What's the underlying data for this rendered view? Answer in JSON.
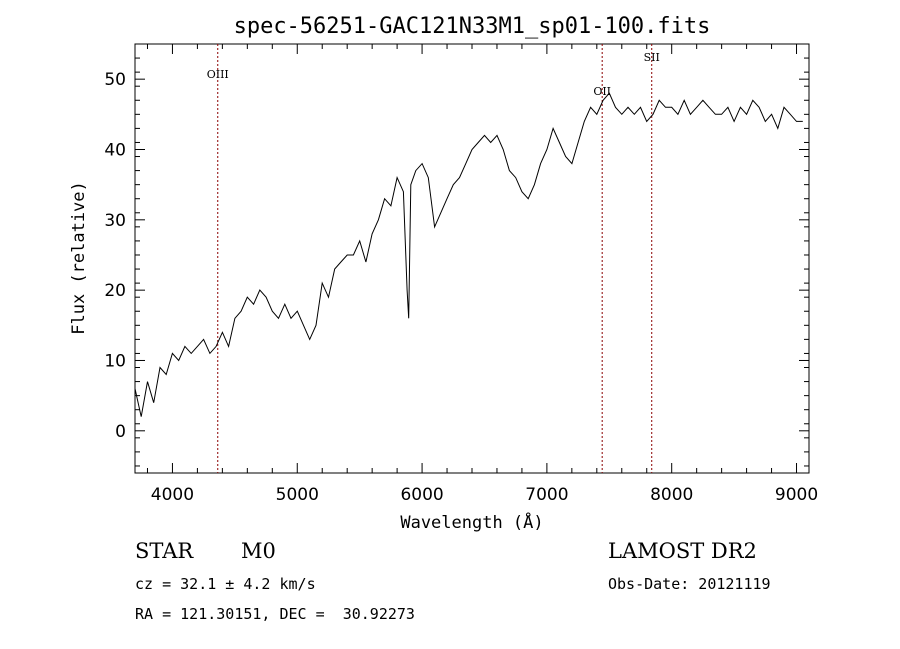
{
  "chart_data": {
    "type": "line",
    "title": "spec-56251-GAC121N33M1_sp01-100.fits",
    "xlabel": "Wavelength (Å)",
    "ylabel": "Flux (relative)",
    "xlim": [
      3700,
      9100
    ],
    "ylim": [
      -6,
      55
    ],
    "xticks": [
      4000,
      5000,
      6000,
      7000,
      8000,
      9000
    ],
    "yticks": [
      0,
      10,
      20,
      30,
      40,
      50
    ],
    "grid": false,
    "line_color": "#000000",
    "marker_color": "#8b0000",
    "series": [
      {
        "x": [
          3700,
          3750,
          3800,
          3850,
          3900,
          3950,
          4000,
          4050,
          4100,
          4150,
          4200,
          4250,
          4300,
          4350,
          4400,
          4450,
          4500,
          4550,
          4600,
          4650,
          4700,
          4750,
          4800,
          4850,
          4900,
          4950,
          5000,
          5050,
          5100,
          5150,
          5200,
          5250,
          5300,
          5350,
          5400,
          5450,
          5500,
          5550,
          5600,
          5650,
          5700,
          5750,
          5800,
          5850,
          5880,
          5893,
          5910,
          5950,
          6000,
          6050,
          6100,
          6150,
          6200,
          6250,
          6300,
          6350,
          6400,
          6450,
          6500,
          6550,
          6600,
          6650,
          6700,
          6750,
          6800,
          6850,
          6900,
          6950,
          7000,
          7050,
          7100,
          7150,
          7200,
          7250,
          7300,
          7350,
          7400,
          7450,
          7500,
          7550,
          7600,
          7650,
          7700,
          7750,
          7800,
          7850,
          7900,
          7950,
          8000,
          8050,
          8100,
          8150,
          8200,
          8250,
          8300,
          8350,
          8400,
          8450,
          8500,
          8550,
          8600,
          8650,
          8700,
          8750,
          8800,
          8850,
          8900,
          8950,
          9000,
          9050
        ],
        "y": [
          6,
          2,
          7,
          4,
          9,
          8,
          11,
          10,
          12,
          11,
          12,
          13,
          11,
          12,
          14,
          12,
          16,
          17,
          19,
          18,
          20,
          19,
          17,
          16,
          18,
          16,
          17,
          15,
          13,
          15,
          21,
          19,
          23,
          24,
          25,
          25,
          27,
          24,
          28,
          30,
          33,
          32,
          36,
          34,
          20,
          16,
          35,
          37,
          38,
          36,
          29,
          31,
          33,
          35,
          36,
          38,
          40,
          41,
          42,
          41,
          42,
          40,
          37,
          36,
          34,
          33,
          35,
          38,
          40,
          43,
          41,
          39,
          38,
          41,
          44,
          46,
          45,
          47,
          48,
          46,
          45,
          46,
          45,
          46,
          44,
          45,
          47,
          46,
          46,
          45,
          47,
          45,
          46,
          47,
          46,
          45,
          45,
          46,
          44,
          46,
          45,
          47,
          46,
          44,
          45,
          43,
          46,
          45,
          44,
          44
        ]
      }
    ],
    "line_markers": [
      {
        "label": "OIII",
        "x": 4363
      },
      {
        "label": "OII",
        "x": 7443
      },
      {
        "label": "SII",
        "x": 7840
      }
    ]
  },
  "info": {
    "class_label": "STAR",
    "subclass_label": "M0",
    "redshift": "cz = 32.1 ± 4.2 km/s",
    "coords": "RA = 121.30151, DEC =  30.92273",
    "survey": "LAMOST DR2",
    "obs_date": "Obs-Date: 20121119"
  }
}
